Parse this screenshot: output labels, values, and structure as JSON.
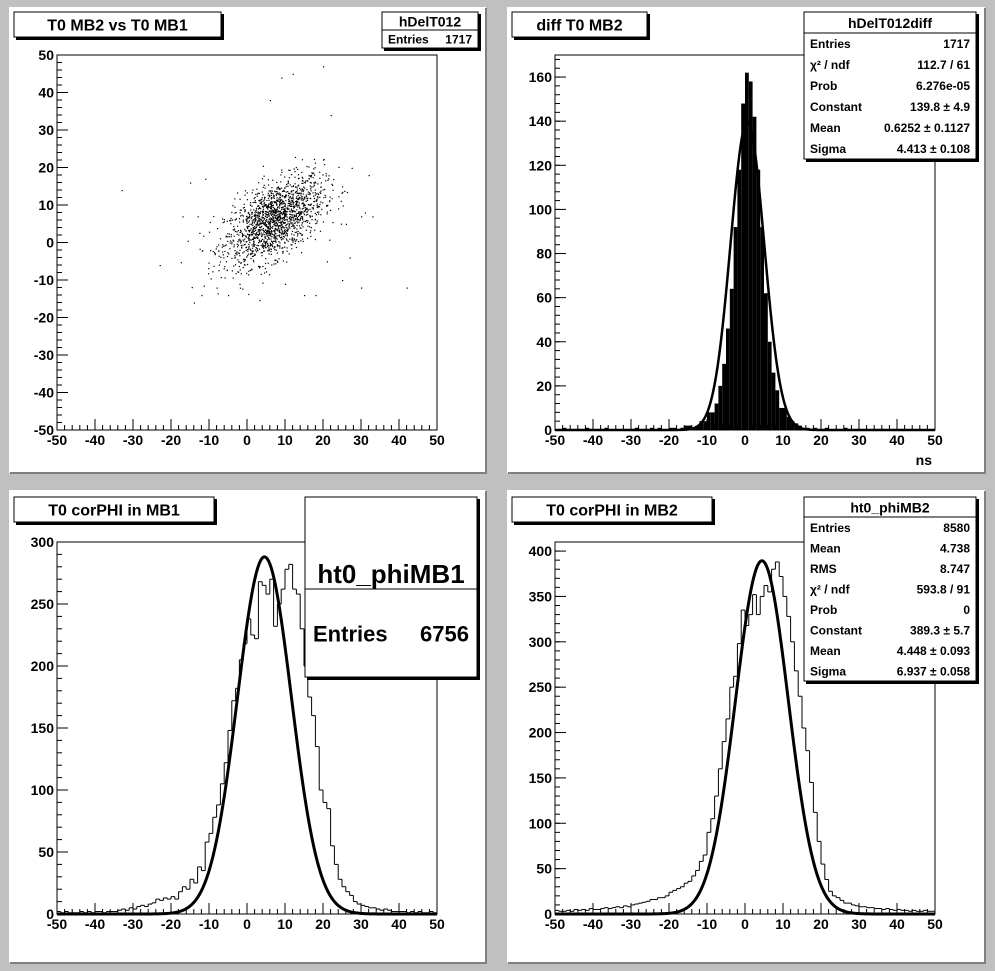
{
  "colors": {
    "canvas_bg": "#c0c0c0",
    "pad_bg": "#ffffff",
    "ink": "#000000"
  },
  "panels": [
    {
      "title": "T0 MB2 vs T0 MB1",
      "stats": {
        "name": "hDelT012",
        "rows": [
          {
            "label": "Entries",
            "value": "1717"
          }
        ]
      }
    },
    {
      "title": "diff T0 MB2",
      "stats": {
        "name": "hDelT012diff",
        "rows": [
          {
            "label": "Entries",
            "value": "1717"
          },
          {
            "label": "χ² / ndf",
            "value": "112.7 / 61"
          },
          {
            "label": "Prob",
            "value": "6.276e-05"
          },
          {
            "label": "Constant",
            "value": "139.8 ± 4.9"
          },
          {
            "label": "Mean",
            "value": "0.6252 ± 0.1127"
          },
          {
            "label": "Sigma",
            "value": "4.413 ± 0.108"
          }
        ]
      }
    },
    {
      "title": "T0 corPHI in MB1",
      "stats": {
        "name": "ht0_phiMB1",
        "rows": [
          {
            "label": "Entries",
            "value": "6756"
          }
        ]
      }
    },
    {
      "title": "T0 corPHI in MB2",
      "stats": {
        "name": "ht0_phiMB2",
        "rows": [
          {
            "label": "Entries",
            "value": "8580"
          },
          {
            "label": "Mean",
            "value": "4.738"
          },
          {
            "label": "RMS",
            "value": "8.747"
          },
          {
            "label": "χ² / ndf",
            "value": "593.8 / 91"
          },
          {
            "label": "Prob",
            "value": "0"
          },
          {
            "label": "Constant",
            "value": "389.3 ± 5.7"
          },
          {
            "label": "Mean",
            "value": "4.448 ± 0.093"
          },
          {
            "label": "Sigma",
            "value": "6.937 ± 0.058"
          }
        ]
      }
    }
  ],
  "chart_data": [
    {
      "type": "scatter",
      "title": "T0 MB2 vs T0 MB1",
      "xlabel": "",
      "ylabel": "",
      "xlim": [
        -50,
        50
      ],
      "ylim": [
        -50,
        50
      ],
      "xticks": [
        -50,
        -40,
        -30,
        -20,
        -10,
        0,
        10,
        20,
        30,
        40,
        50
      ],
      "yticks": [
        -50,
        -40,
        -30,
        -20,
        -10,
        0,
        10,
        20,
        30,
        40,
        50
      ],
      "entries": 1717,
      "core": {
        "mean_x": 7,
        "mean_y": 6,
        "sigma_x": 6.5,
        "sigma_y": 5.8,
        "correlation": 0.55
      },
      "outliers": [
        [
          -33,
          14
        ],
        [
          -15,
          16
        ],
        [
          -14,
          -16
        ],
        [
          -13,
          7
        ],
        [
          -11,
          17
        ],
        [
          -23,
          -6
        ],
        [
          -8,
          -12
        ],
        [
          -17,
          7
        ],
        [
          9,
          44
        ],
        [
          12,
          45
        ],
        [
          20,
          47
        ],
        [
          6,
          38
        ],
        [
          22,
          34
        ],
        [
          27,
          -4
        ],
        [
          25,
          -10
        ],
        [
          30,
          -12
        ],
        [
          42,
          -12
        ],
        [
          31,
          8
        ],
        [
          32,
          18
        ],
        [
          30,
          7
        ],
        [
          33,
          7
        ],
        [
          26,
          5
        ],
        [
          25,
          15
        ],
        [
          -5,
          -14
        ],
        [
          15,
          -14
        ],
        [
          21,
          -5
        ],
        [
          18,
          -14
        ],
        [
          -12,
          -14
        ],
        [
          -2,
          -11
        ],
        [
          10,
          -11
        ]
      ]
    },
    {
      "type": "bar",
      "title": "diff T0 MB2",
      "xlabel": "ns",
      "ylabel": "",
      "xlim": [
        -50,
        50
      ],
      "ylim": [
        0,
        170
      ],
      "xticks": [
        -50,
        -40,
        -30,
        -20,
        -10,
        0,
        10,
        20,
        30,
        40,
        50
      ],
      "yticks": [
        0,
        20,
        40,
        60,
        80,
        100,
        120,
        140,
        160
      ],
      "bin_width": 1,
      "x": [
        -50,
        -49,
        -48,
        -47,
        -46,
        -45,
        -44,
        -43,
        -42,
        -41,
        -40,
        -39,
        -38,
        -37,
        -36,
        -35,
        -34,
        -33,
        -32,
        -31,
        -30,
        -29,
        -28,
        -27,
        -26,
        -25,
        -24,
        -23,
        -22,
        -21,
        -20,
        -19,
        -18,
        -17,
        -16,
        -15,
        -14,
        -13,
        -12,
        -11,
        -10,
        -9,
        -8,
        -7,
        -6,
        -5,
        -4,
        -3,
        -2,
        -1,
        0,
        1,
        2,
        3,
        4,
        5,
        6,
        7,
        8,
        9,
        10,
        11,
        12,
        13,
        14,
        15,
        16,
        17,
        18,
        19,
        20,
        21,
        22,
        23,
        24,
        25,
        26,
        27,
        28,
        29,
        30,
        31,
        32,
        33,
        34,
        35,
        36,
        37,
        38,
        39,
        40,
        41,
        42,
        43,
        44,
        45,
        46,
        47,
        48,
        49
      ],
      "values": [
        0,
        0,
        1,
        0,
        0,
        0,
        0,
        0,
        1,
        0,
        0,
        0,
        0,
        1,
        0,
        0,
        0,
        0,
        0,
        0,
        0,
        1,
        0,
        0,
        0,
        1,
        0,
        1,
        0,
        0,
        1,
        1,
        0,
        1,
        2,
        2,
        1,
        2,
        4,
        4,
        8,
        8,
        12,
        20,
        30,
        46,
        64,
        92,
        118,
        148,
        162,
        158,
        142,
        118,
        92,
        62,
        40,
        26,
        18,
        10,
        10,
        6,
        4,
        3,
        2,
        1,
        1,
        0,
        1,
        0,
        0,
        1,
        0,
        0,
        0,
        0,
        1,
        0,
        0,
        0,
        0,
        0,
        0,
        0,
        0,
        0,
        0,
        0,
        0,
        0,
        0,
        0,
        0,
        0,
        0,
        0,
        0,
        0,
        0,
        0
      ],
      "fit": {
        "function": "gaus",
        "constant": 139.8,
        "mean": 0.6252,
        "sigma": 4.413
      }
    },
    {
      "type": "bar",
      "title": "T0 corPHI in MB1",
      "xlabel": "",
      "ylabel": "",
      "xlim": [
        -50,
        50
      ],
      "ylim": [
        0,
        300
      ],
      "xticks": [
        -50,
        -40,
        -30,
        -20,
        -10,
        0,
        10,
        20,
        30,
        40,
        50
      ],
      "yticks": [
        0,
        50,
        100,
        150,
        200,
        250,
        300
      ],
      "bin_width": 1,
      "x": [
        -50,
        -49,
        -48,
        -47,
        -46,
        -45,
        -44,
        -43,
        -42,
        -41,
        -40,
        -39,
        -38,
        -37,
        -36,
        -35,
        -34,
        -33,
        -32,
        -31,
        -30,
        -29,
        -28,
        -27,
        -26,
        -25,
        -24,
        -23,
        -22,
        -21,
        -20,
        -19,
        -18,
        -17,
        -16,
        -15,
        -14,
        -13,
        -12,
        -11,
        -10,
        -9,
        -8,
        -7,
        -6,
        -5,
        -4,
        -3,
        -2,
        -1,
        0,
        1,
        2,
        3,
        4,
        5,
        6,
        7,
        8,
        9,
        10,
        11,
        12,
        13,
        14,
        15,
        16,
        17,
        18,
        19,
        20,
        21,
        22,
        23,
        24,
        25,
        26,
        27,
        28,
        29,
        30,
        31,
        32,
        33,
        34,
        35,
        36,
        37,
        38,
        39,
        40,
        41,
        42,
        43,
        44,
        45,
        46,
        47,
        48,
        49
      ],
      "values": [
        2,
        1,
        2,
        1,
        1,
        1,
        2,
        1,
        2,
        1,
        2,
        2,
        1,
        2,
        2,
        2,
        3,
        4,
        3,
        5,
        4,
        6,
        7,
        6,
        8,
        9,
        12,
        11,
        13,
        12,
        14,
        12,
        18,
        22,
        20,
        28,
        25,
        38,
        35,
        58,
        65,
        78,
        88,
        105,
        122,
        148,
        172,
        182,
        205,
        218,
        238,
        225,
        222,
        268,
        265,
        258,
        270,
        232,
        250,
        262,
        278,
        282,
        262,
        258,
        230,
        200,
        175,
        160,
        135,
        100,
        90,
        85,
        55,
        40,
        28,
        22,
        18,
        15,
        10,
        8,
        7,
        6,
        5,
        5,
        4,
        3,
        4,
        3,
        2,
        2,
        2,
        2,
        1,
        2,
        1,
        2,
        1,
        1,
        2,
        1
      ],
      "fit": {
        "function": "gaus",
        "constant": 288,
        "mean": 4.6,
        "sigma": 7.1
      }
    },
    {
      "type": "bar",
      "title": "T0 corPHI in MB2",
      "xlabel": "",
      "ylabel": "",
      "xlim": [
        -50,
        50
      ],
      "ylim": [
        0,
        410
      ],
      "xticks": [
        -50,
        -40,
        -30,
        -20,
        -10,
        0,
        10,
        20,
        30,
        40,
        50
      ],
      "yticks": [
        0,
        50,
        100,
        150,
        200,
        250,
        300,
        350,
        400
      ],
      "bin_width": 1,
      "x": [
        -50,
        -49,
        -48,
        -47,
        -46,
        -45,
        -44,
        -43,
        -42,
        -41,
        -40,
        -39,
        -38,
        -37,
        -36,
        -35,
        -34,
        -33,
        -32,
        -31,
        -30,
        -29,
        -28,
        -27,
        -26,
        -25,
        -24,
        -23,
        -22,
        -21,
        -20,
        -19,
        -18,
        -17,
        -16,
        -15,
        -14,
        -13,
        -12,
        -11,
        -10,
        -9,
        -8,
        -7,
        -6,
        -5,
        -4,
        -3,
        -2,
        -1,
        0,
        1,
        2,
        3,
        4,
        5,
        6,
        7,
        8,
        9,
        10,
        11,
        12,
        13,
        14,
        15,
        16,
        17,
        18,
        19,
        20,
        21,
        22,
        23,
        24,
        25,
        26,
        27,
        28,
        29,
        30,
        31,
        32,
        33,
        34,
        35,
        36,
        37,
        38,
        39,
        40,
        41,
        42,
        43,
        44,
        45,
        46,
        47,
        48,
        49
      ],
      "values": [
        4,
        3,
        3,
        4,
        3,
        5,
        4,
        5,
        4,
        6,
        5,
        5,
        6,
        7,
        6,
        7,
        8,
        7,
        9,
        8,
        10,
        11,
        12,
        13,
        14,
        16,
        16,
        18,
        18,
        20,
        24,
        26,
        28,
        30,
        34,
        36,
        42,
        48,
        58,
        65,
        90,
        105,
        130,
        160,
        190,
        215,
        250,
        262,
        298,
        335,
        318,
        330,
        352,
        330,
        350,
        362,
        355,
        380,
        388,
        372,
        350,
        328,
        300,
        268,
        240,
        205,
        180,
        145,
        112,
        80,
        55,
        38,
        25,
        20,
        18,
        15,
        12,
        12,
        10,
        9,
        8,
        8,
        7,
        7,
        6,
        6,
        5,
        6,
        5,
        4,
        5,
        4,
        4,
        3,
        4,
        3,
        3,
        4,
        3,
        3
      ],
      "fit": {
        "function": "gaus",
        "constant": 389.3,
        "mean": 4.448,
        "sigma": 6.937
      }
    }
  ]
}
